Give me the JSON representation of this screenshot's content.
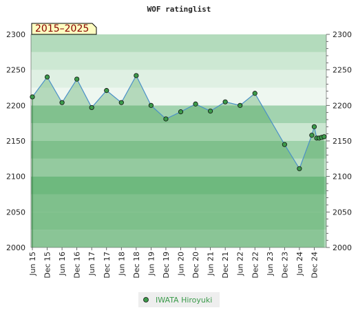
{
  "chart_data": {
    "type": "line",
    "title": "WOF ratinglist",
    "period_badge": "2015–2025",
    "ylim": [
      2000,
      2300
    ],
    "yticks": [
      2000,
      2050,
      2100,
      2150,
      2200,
      2250,
      2300
    ],
    "x_start": "2015-05",
    "x_ticks": [
      "Jun 15",
      "Dec 15",
      "Jun 16",
      "Dec 16",
      "Jun 17",
      "Dec 17",
      "Jun 18",
      "Dec 18",
      "Jun 19",
      "Dec 19",
      "Jun 20",
      "Dec 20",
      "Jun 21",
      "Dec 21",
      "Jun 22",
      "Dec 22",
      "Jun 23",
      "Dec 23",
      "Jun 24",
      "Dec 24"
    ],
    "series": [
      {
        "name": "IWATA Hiroyuki",
        "color": "#3c9a4a",
        "points": [
          {
            "x": "2015-05",
            "y": 2212
          },
          {
            "x": "2015-11",
            "y": 2240
          },
          {
            "x": "2016-05",
            "y": 2204
          },
          {
            "x": "2016-11",
            "y": 2237
          },
          {
            "x": "2017-05",
            "y": 2197
          },
          {
            "x": "2017-11",
            "y": 2221
          },
          {
            "x": "2018-05",
            "y": 2204
          },
          {
            "x": "2018-11",
            "y": 2242
          },
          {
            "x": "2019-05",
            "y": 2200
          },
          {
            "x": "2019-11",
            "y": 2181
          },
          {
            "x": "2020-05",
            "y": 2191
          },
          {
            "x": "2020-11",
            "y": 2202
          },
          {
            "x": "2021-05",
            "y": 2192
          },
          {
            "x": "2021-11",
            "y": 2205
          },
          {
            "x": "2022-05",
            "y": 2200
          },
          {
            "x": "2022-11",
            "y": 2217
          },
          {
            "x": "2023-11",
            "y": 2145
          },
          {
            "x": "2024-05",
            "y": 2111
          },
          {
            "x": "2024-10",
            "y": 2158
          },
          {
            "x": "2024-11",
            "y": 2170
          },
          {
            "x": "2024-12",
            "y": 2154
          },
          {
            "x": "2025-01",
            "y": 2154
          },
          {
            "x": "2025-02",
            "y": 2155
          },
          {
            "x": "2025-03",
            "y": 2156
          }
        ]
      }
    ],
    "legend_position": "bottom",
    "grid": "horizontal bands"
  }
}
